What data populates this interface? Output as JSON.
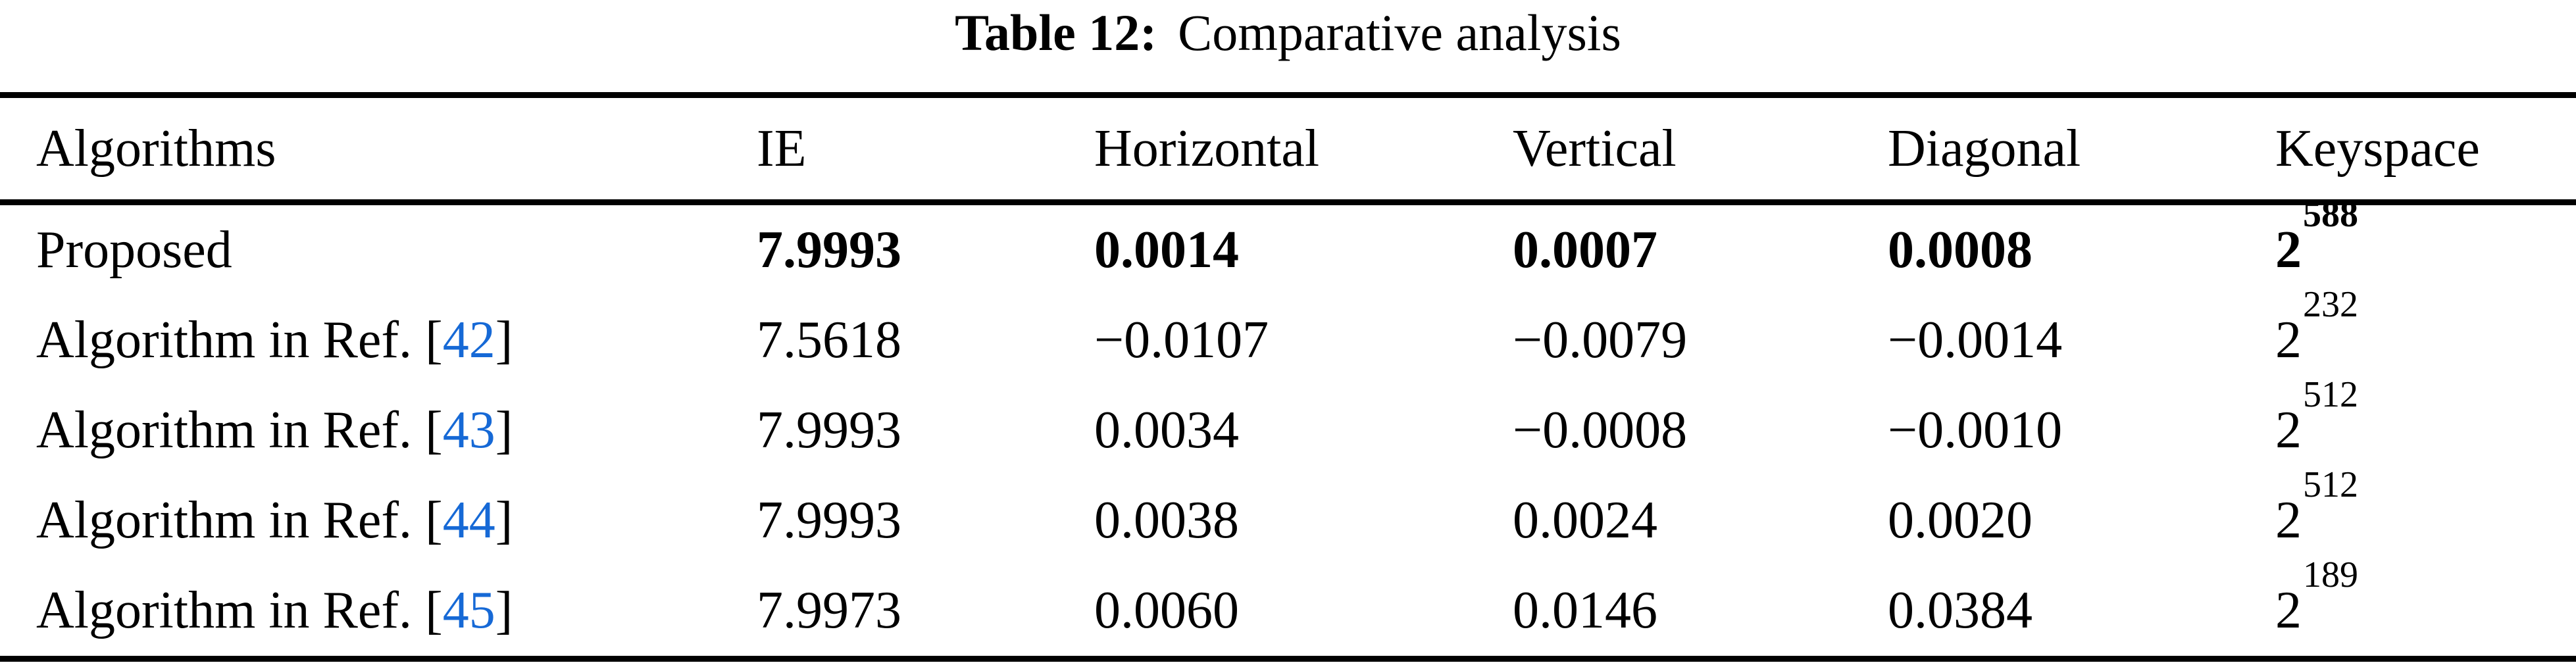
{
  "accent_color": "#1669D6",
  "text_color": "#000000",
  "background_color": "#ffffff",
  "caption": {
    "label": "Table 12:",
    "title": "Comparative analysis"
  },
  "table": {
    "columns": [
      "Algorithms",
      "IE",
      "Horizontal",
      "Vertical",
      "Diagonal",
      "Keyspace"
    ],
    "rows": [
      {
        "label": "Proposed",
        "ie": "7.9993",
        "horizontal": "0.0014",
        "vertical": "0.0007",
        "diagonal": "0.0008",
        "keyspace_base": "2",
        "keyspace_exp": "588"
      },
      {
        "label": "Algorithm in Ref. ",
        "ref_open": "[",
        "ref": "42",
        "ref_close": "]",
        "ie": "7.5618",
        "horizontal": "−0.0107",
        "vertical": "−0.0079",
        "diagonal": "−0.0014",
        "keyspace_base": "2",
        "keyspace_exp": "232"
      },
      {
        "label": "Algorithm in Ref. ",
        "ref_open": "[",
        "ref": "43",
        "ref_close": "]",
        "ie": "7.9993",
        "horizontal": "0.0034",
        "vertical": "−0.0008",
        "diagonal": "−0.0010",
        "keyspace_base": "2",
        "keyspace_exp": "512"
      },
      {
        "label": "Algorithm in Ref. ",
        "ref_open": "[",
        "ref": "44",
        "ref_close": "]",
        "ie": "7.9993",
        "horizontal": "0.0038",
        "vertical": "0.0024",
        "diagonal": "0.0020",
        "keyspace_base": "2",
        "keyspace_exp": "512"
      },
      {
        "label": "Algorithm in Ref. ",
        "ref_open": "[",
        "ref": "45",
        "ref_close": "]",
        "ie": "7.9973",
        "horizontal": "0.0060",
        "vertical": "0.0146",
        "diagonal": "0.0384",
        "keyspace_base": "2",
        "keyspace_exp": "189"
      }
    ]
  }
}
